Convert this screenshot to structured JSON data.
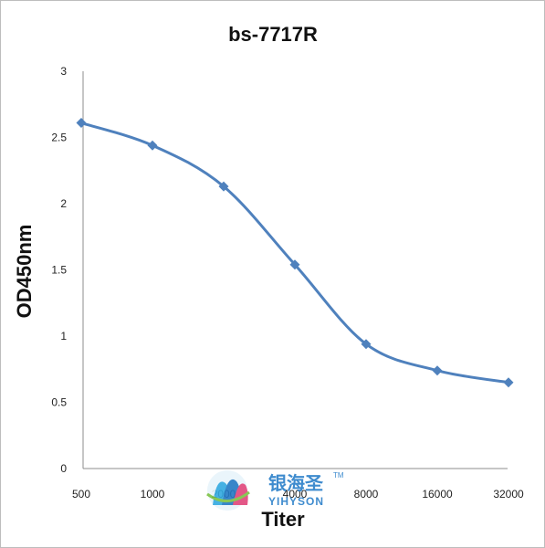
{
  "chart_data": {
    "type": "line",
    "title": "bs-7717R",
    "xlabel": "Titer",
    "ylabel": "OD450nm",
    "categories": [
      "500",
      "1000",
      "2000",
      "4000",
      "8000",
      "16000",
      "32000"
    ],
    "values": [
      2.61,
      2.44,
      2.13,
      1.54,
      0.94,
      0.74,
      0.65
    ],
    "ylim": [
      0,
      3
    ],
    "yticks": [
      "0",
      "0.5",
      "1",
      "1.5",
      "2",
      "2.5",
      "3"
    ],
    "grid": false,
    "line_color": "#4f81bd",
    "marker": "diamond"
  },
  "watermark": {
    "cn": "银海圣",
    "en": "YIHYSON",
    "tm": "TM"
  }
}
